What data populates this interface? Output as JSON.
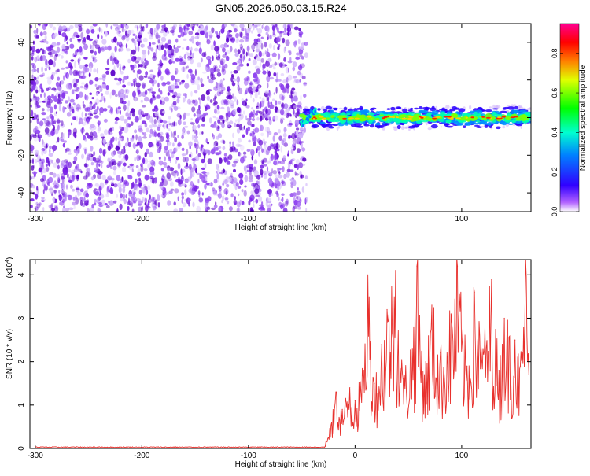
{
  "title": "GN05.2026.050.03.15.R24",
  "colors": {
    "noise": "#7a1fe0",
    "line": "#e8302c",
    "colorbar_stops": [
      "#ffffff",
      "#a000ff",
      "#0000ff",
      "#00ffff",
      "#00ff00",
      "#ffff00",
      "#ff0000",
      "#ff00a0"
    ]
  },
  "chart_data": [
    {
      "type": "heatmap",
      "name": "spectrogram",
      "xlabel": "Height of straight line (km)",
      "ylabel": "Frequency (Hz)",
      "xlim": [
        -305,
        165
      ],
      "ylim": [
        -50,
        50
      ],
      "x_ticks": [
        -300,
        -200,
        -100,
        0,
        100
      ],
      "x_tick_labels": [
        "-300",
        "-200",
        "-100",
        "0",
        "100"
      ],
      "y_ticks": [
        -40,
        -20,
        0,
        20,
        40
      ],
      "y_tick_labels": [
        "-40",
        "-20",
        "0",
        "20",
        "40"
      ],
      "noise_region_x": [
        -305,
        -50
      ],
      "signal_band": {
        "x_start": -50,
        "x_end": 165,
        "center_freq": 0,
        "half_width": 4
      },
      "colorbar": {
        "label": "Normalized spectral amplitude",
        "range": [
          0,
          0.95
        ],
        "ticks": [
          0,
          0.2,
          0.4,
          0.6,
          0.8
        ],
        "tick_labels": [
          "0.0",
          "0.2",
          "0.4",
          "0.6",
          "0.8"
        ]
      }
    },
    {
      "type": "line",
      "name": "snr",
      "xlabel": "Height of straight line (km)",
      "ylabel": "SNR (10 * v/v)",
      "y_multiplier_label": "(x10",
      "y_multiplier_exponent": "4",
      "y_multiplier_close": ")",
      "xlim": [
        -305,
        165
      ],
      "ylim": [
        0,
        4.35
      ],
      "x_ticks": [
        -300,
        -200,
        -100,
        0,
        100
      ],
      "x_tick_labels": [
        "-300",
        "-200",
        "-100",
        "0",
        "100"
      ],
      "y_ticks": [
        0,
        1,
        2,
        3,
        4
      ],
      "y_tick_labels": [
        "0",
        "1",
        "2",
        "3",
        "4"
      ],
      "baseline_value": 0.02,
      "onset_x": -28,
      "points": [
        [
          -300,
          0.02
        ],
        [
          -200,
          0.02
        ],
        [
          -100,
          0.02
        ],
        [
          -40,
          0.02
        ],
        [
          -28,
          0.05
        ],
        [
          -22,
          0.6
        ],
        [
          -18,
          1.3
        ],
        [
          -12,
          0.9
        ],
        [
          -5,
          1.4
        ],
        [
          0,
          1.1
        ],
        [
          8,
          1.8
        ],
        [
          12,
          4.0
        ],
        [
          18,
          1.5
        ],
        [
          25,
          2.4
        ],
        [
          30,
          3.2
        ],
        [
          38,
          4.1
        ],
        [
          45,
          1.6
        ],
        [
          55,
          2.8
        ],
        [
          58,
          4.2
        ],
        [
          65,
          1.7
        ],
        [
          72,
          3.3
        ],
        [
          80,
          2.2
        ],
        [
          90,
          3.1
        ],
        [
          96,
          4.2
        ],
        [
          105,
          1.9
        ],
        [
          112,
          3.6
        ],
        [
          120,
          2.3
        ],
        [
          128,
          3.9
        ],
        [
          135,
          1.8
        ],
        [
          140,
          3.0
        ],
        [
          150,
          2.5
        ],
        [
          155,
          1.9
        ],
        [
          160,
          4.35
        ],
        [
          163,
          1.7
        ]
      ]
    }
  ]
}
